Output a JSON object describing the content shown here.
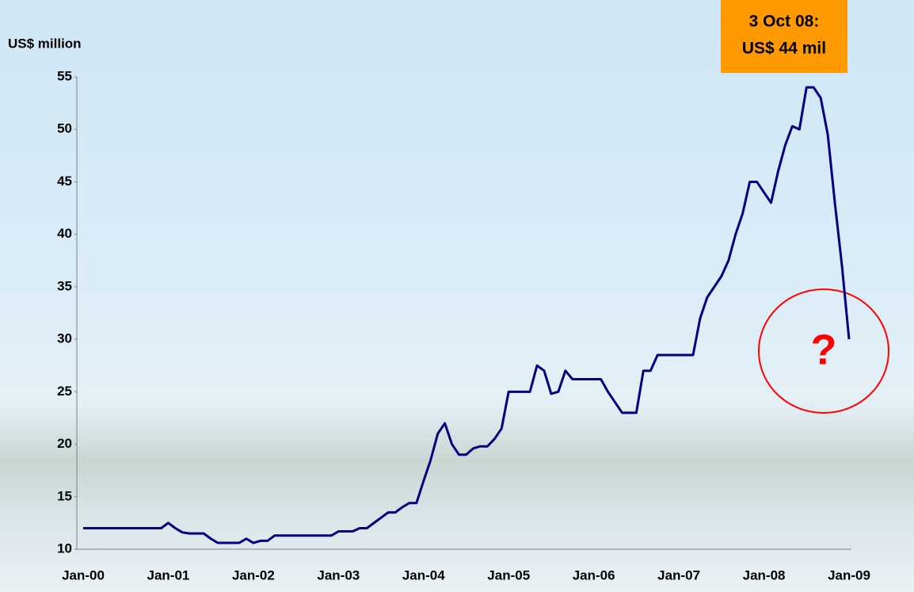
{
  "chart_data": {
    "type": "line",
    "y_label": "US$ million",
    "annotation": [
      "3 Oct 08:",
      "US$ 44 mil"
    ],
    "callout": "?",
    "categories": [
      "Jan-00",
      null,
      null,
      null,
      null,
      null,
      null,
      null,
      null,
      null,
      null,
      null,
      "Jan-01",
      null,
      null,
      null,
      null,
      null,
      null,
      null,
      null,
      null,
      null,
      null,
      "Jan-02",
      null,
      null,
      null,
      null,
      null,
      null,
      null,
      null,
      null,
      null,
      null,
      "Jan-03",
      null,
      null,
      null,
      null,
      null,
      null,
      null,
      null,
      null,
      null,
      null,
      "Jan-04",
      null,
      null,
      null,
      null,
      null,
      null,
      null,
      null,
      null,
      null,
      null,
      "Jan-05",
      null,
      null,
      null,
      null,
      null,
      null,
      null,
      null,
      null,
      null,
      null,
      "Jan-06",
      null,
      null,
      null,
      null,
      null,
      null,
      null,
      null,
      null,
      null,
      null,
      "Jan-07",
      null,
      null,
      null,
      null,
      null,
      null,
      null,
      null,
      null,
      null,
      null,
      "Jan-08",
      null,
      null,
      null,
      null,
      null,
      null,
      null,
      null,
      null,
      null,
      null,
      "Jan-09"
    ],
    "series": [
      {
        "name": "US$ million",
        "color": "#000080",
        "values": [
          12,
          12,
          12,
          12,
          12,
          12,
          12,
          12,
          12,
          12,
          12,
          12,
          12.5,
          12,
          11.6,
          11.5,
          11.5,
          11.5,
          11,
          10.6,
          10.6,
          10.6,
          10.6,
          11,
          10.6,
          10.8,
          10.8,
          11.3,
          11.3,
          11.3,
          11.3,
          11.3,
          11.3,
          11.3,
          11.3,
          11.3,
          11.7,
          11.7,
          11.7,
          12,
          12,
          12.5,
          13,
          13.5,
          13.5,
          14,
          14.4,
          14.4,
          16.5,
          18.5,
          21,
          22,
          20,
          19,
          19,
          19.6,
          19.8,
          19.8,
          20.5,
          21.5,
          25,
          25,
          25,
          25,
          27.5,
          27,
          24.8,
          25,
          27,
          26.2,
          26.2,
          26.2,
          26.2,
          26.2,
          25,
          24,
          23,
          23,
          23,
          27,
          27,
          28.5,
          28.5,
          28.5,
          28.5,
          28.5,
          28.5,
          32,
          34,
          35,
          36,
          37.5,
          40,
          42,
          45,
          45,
          44,
          43,
          46,
          48.5,
          50.3,
          50,
          54,
          54,
          53,
          49.5,
          43,
          37,
          30
        ]
      }
    ],
    "ylim": [
      10,
      55
    ],
    "yticks": [
      10,
      15,
      20,
      25,
      30,
      35,
      40,
      45,
      50,
      55
    ],
    "grid": false
  }
}
